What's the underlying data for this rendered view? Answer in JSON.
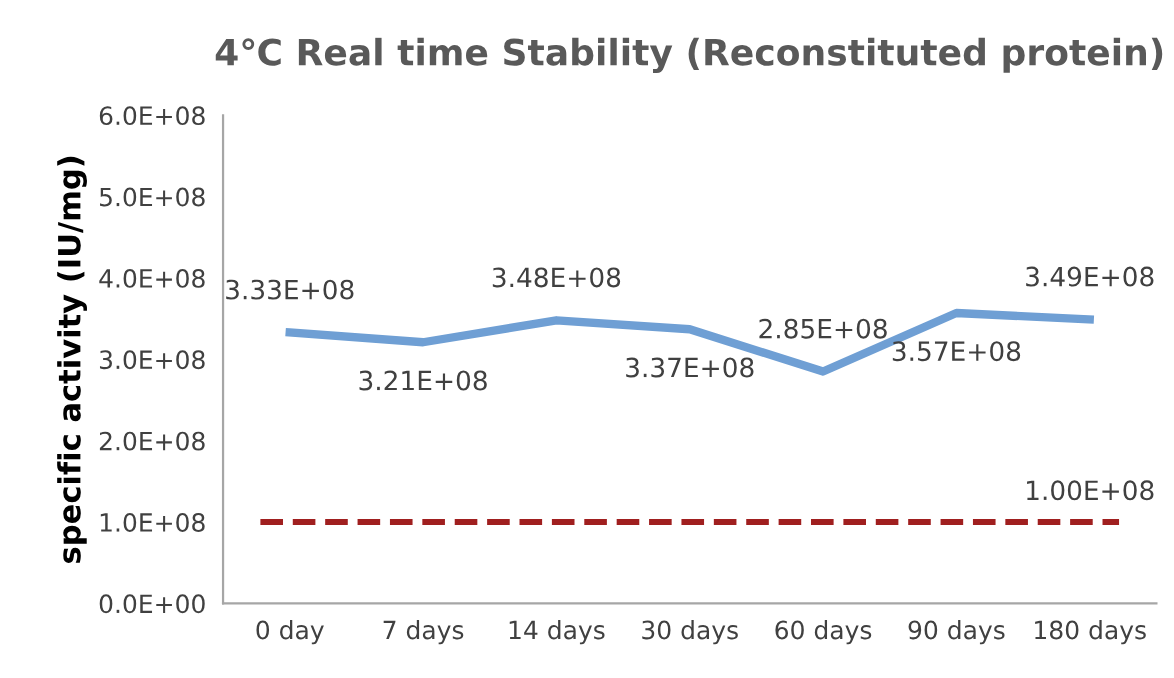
{
  "chart_data": {
    "type": "line",
    "title": "4℃ Real time Stability (Reconstituted protein)",
    "ylabel": "specific activity (IU/mg)",
    "categories": [
      "0 day",
      "7 days",
      "14 days",
      "30 days",
      "60 days",
      "90 days",
      "180 days"
    ],
    "series": [
      {
        "color": "#6f9fd4",
        "values": [
          333000000,
          321000000,
          348000000,
          337000000,
          285000000,
          357000000,
          349000000
        ],
        "value_labels": [
          "3.33E+08",
          "3.21E+08",
          "3.48E+08",
          "3.37E+08",
          "2.85E+08",
          "3.57E+08",
          "3.49E+08"
        ]
      }
    ],
    "ylim": [
      0,
      600000000
    ],
    "yticks": [
      {
        "value": 0,
        "label": "0.0E+00"
      },
      {
        "value": 100000000,
        "label": "1.0E+08"
      },
      {
        "value": 200000000,
        "label": "2.0E+08"
      },
      {
        "value": 300000000,
        "label": "3.0E+08"
      },
      {
        "value": 400000000,
        "label": "4.0E+08"
      },
      {
        "value": 500000000,
        "label": "5.0E+08"
      },
      {
        "value": 600000000,
        "label": "6.0E+08"
      }
    ],
    "ref_lines": [
      {
        "axis": "y",
        "value": 100000000,
        "label": "1.00E+08",
        "color": "#a01f1f",
        "line_style": "dashed"
      }
    ],
    "grid": false,
    "legend": false,
    "marker": "none",
    "line_style": "solid"
  }
}
